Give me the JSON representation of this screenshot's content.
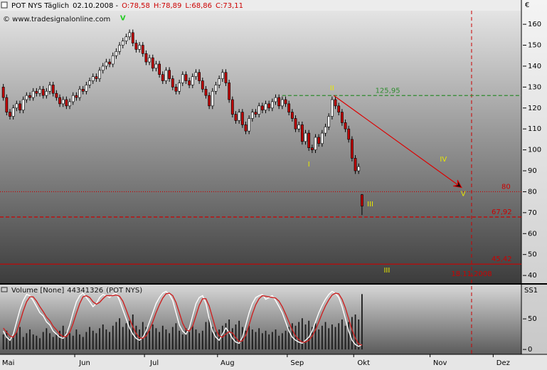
{
  "chart_data": [
    {
      "type": "candlestick",
      "header": [
        "POT NYS Täglich",
        "02.10.2008 -",
        "O:78,58",
        "H:78,89",
        "L:68,86",
        "C:73,11"
      ],
      "header_colors": [
        "#000000",
        "#000000",
        "#cc0000",
        "#cc0000",
        "#cc0000",
        "#cc0000"
      ],
      "subtitle": "© www.tradesignalonline.com",
      "unit": "€",
      "xlim": [
        -1,
        156
      ],
      "xticks": [
        {
          "value": 1.5,
          "label": "Mai"
        },
        {
          "value": 24.5,
          "label": "Jun"
        },
        {
          "value": 45.5,
          "label": "Jul"
        },
        {
          "value": 67.5,
          "label": "Aug"
        },
        {
          "value": 88.5,
          "label": "Sep"
        },
        {
          "value": 108.5,
          "label": "Okt"
        },
        {
          "value": 131.5,
          "label": "Nov"
        },
        {
          "value": 150.5,
          "label": "Dez"
        }
      ],
      "ylim": [
        36.3,
        166.5
      ],
      "yticks": [
        40,
        50,
        60,
        70,
        80,
        90,
        100,
        110,
        120,
        130,
        140,
        150,
        160
      ],
      "up_color": "#ffffff",
      "down_color": "#c00000",
      "open": [
        130,
        125,
        118,
        116,
        120,
        122,
        119,
        124,
        126,
        125,
        128,
        127,
        129,
        126,
        128,
        131,
        127,
        125,
        122,
        124,
        121,
        123,
        126,
        125,
        129,
        128,
        131,
        133,
        135,
        134,
        138,
        140,
        142,
        141,
        145,
        147,
        150,
        152,
        154,
        156,
        151,
        148,
        150,
        146,
        142,
        144,
        139,
        141,
        136,
        133,
        138,
        134,
        130,
        128,
        132,
        136,
        133,
        131,
        135,
        137,
        133,
        129,
        126,
        121,
        128,
        131,
        134,
        137,
        132,
        124,
        117,
        114,
        118,
        112,
        109,
        115,
        118,
        117,
        121,
        119,
        122,
        120,
        123,
        125,
        121,
        124,
        122,
        118,
        115,
        110,
        112,
        104,
        108,
        101,
        100,
        106,
        103,
        108,
        111,
        116,
        124,
        121,
        118,
        113,
        110,
        105,
        96,
        90,
        78.58
      ],
      "high": [
        131.5,
        126.5,
        119.5,
        121.5,
        123.5,
        123.5,
        125.5,
        127.5,
        127.5,
        129.5,
        129.5,
        130.5,
        130.5,
        129.5,
        132.5,
        132.5,
        128.5,
        126.5,
        125.5,
        125.5,
        124.5,
        127.5,
        127.5,
        130.5,
        130.5,
        132.5,
        134.5,
        136.5,
        136.5,
        139.5,
        141.5,
        143.5,
        143.5,
        146.5,
        148.5,
        151.5,
        153.5,
        155.5,
        157.5,
        157.5,
        152.5,
        151.5,
        151.5,
        147.5,
        145.5,
        145.5,
        142.5,
        142.5,
        137.5,
        139.5,
        139.5,
        135.5,
        131.5,
        133.5,
        137.5,
        137.5,
        134.5,
        136.5,
        138.5,
        138.5,
        134.5,
        130.5,
        127.5,
        129.5,
        132.5,
        135.5,
        138.5,
        138.5,
        133.5,
        125.5,
        118.5,
        119.5,
        119.5,
        113.5,
        116.5,
        119.5,
        119.5,
        122.5,
        122.5,
        123.5,
        123.5,
        124.5,
        126.5,
        126.5,
        125.5,
        125.5,
        123.5,
        119.5,
        116.5,
        113.5,
        113.5,
        109.5,
        109.5,
        102.5,
        107.5,
        107.5,
        109.5,
        112.5,
        117.5,
        125.5,
        125.5,
        122.5,
        119.5,
        114.5,
        111.5,
        106.5,
        97.5,
        93.5,
        78.89
      ],
      "low": [
        123.5,
        116.5,
        114.5,
        114.5,
        118.5,
        117.5,
        117.5,
        122.5,
        123.5,
        123.5,
        125.5,
        125.5,
        124.5,
        124.5,
        126.5,
        125.5,
        123.5,
        120.5,
        120.5,
        119.5,
        119.5,
        121.5,
        123.5,
        123.5,
        126.5,
        126.5,
        129.5,
        131.5,
        132.5,
        132.5,
        136.5,
        138.5,
        139.5,
        139.5,
        143.5,
        145.5,
        148.5,
        150.5,
        152.5,
        149.5,
        146.5,
        146.5,
        144.5,
        140.5,
        140.5,
        137.5,
        137.5,
        134.5,
        131.5,
        131.5,
        132.5,
        128.5,
        126.5,
        126.5,
        130.5,
        131.5,
        129.5,
        129.5,
        133.5,
        131.5,
        127.5,
        124.5,
        119.5,
        119.5,
        126.5,
        129.5,
        132.5,
        130.5,
        122.5,
        115.5,
        112.5,
        112.5,
        110.5,
        107.5,
        107.5,
        113.5,
        115.5,
        115.5,
        117.5,
        117.5,
        118.5,
        118.5,
        121.5,
        119.5,
        119.5,
        120.5,
        116.5,
        113.5,
        108.5,
        108.5,
        102.5,
        102.5,
        99.5,
        98.5,
        98.5,
        101.5,
        101.5,
        106.5,
        109.5,
        114.5,
        119.5,
        116.5,
        111.5,
        108.5,
        103.5,
        94.5,
        88.5,
        88.5,
        68.86
      ],
      "close": [
        125,
        118,
        116,
        120,
        122,
        119,
        124,
        126,
        125,
        128,
        127,
        129,
        126,
        128,
        131,
        127,
        125,
        122,
        124,
        121,
        123,
        126,
        125,
        129,
        128,
        131,
        133,
        135,
        134,
        138,
        140,
        142,
        141,
        145,
        147,
        150,
        152,
        154,
        156,
        151,
        148,
        150,
        146,
        142,
        144,
        139,
        141,
        136,
        133,
        138,
        134,
        130,
        128,
        132,
        136,
        133,
        131,
        135,
        137,
        133,
        129,
        126,
        121,
        128,
        131,
        134,
        137,
        132,
        124,
        117,
        114,
        118,
        112,
        109,
        115,
        118,
        117,
        121,
        119,
        122,
        120,
        123,
        125,
        121,
        124,
        122,
        118,
        115,
        110,
        112,
        104,
        108,
        101,
        100,
        106,
        103,
        108,
        111,
        116,
        124,
        121,
        118,
        113,
        110,
        105,
        96,
        90,
        92,
        73.11
      ],
      "levels": [
        {
          "value": 125.95,
          "label": "125,95",
          "color": "#2e8b2e",
          "style": "dashed",
          "from": 84,
          "label_x": 112
        },
        {
          "value": 80,
          "label": "80",
          "color": "#cc0000",
          "style": "dotted",
          "from": -1,
          "label_x": 150
        },
        {
          "value": 67.92,
          "label": "67,92",
          "color": "#cc0000",
          "style": "dashed",
          "from": -1,
          "label_x": 147
        },
        {
          "value": 45.42,
          "label": "45,42",
          "color": "#cc0000",
          "style": "solid",
          "from": -1,
          "label_x": 147
        }
      ],
      "vline": {
        "value": 141,
        "label": "18.11.2008",
        "color": "#cc0000"
      },
      "arrow": {
        "from": [
          99.5,
          125.95
        ],
        "to": [
          138,
          82
        ],
        "color": "#dd0000"
      },
      "waves": [
        {
          "label": "V",
          "x": 36,
          "y": 163,
          "color": "#22cc22"
        },
        {
          "label": "II",
          "x": 99,
          "y": 129.5,
          "color": "#e8e800"
        },
        {
          "label": "I",
          "x": 92,
          "y": 93,
          "color": "#e8e800"
        },
        {
          "label": "III",
          "x": 110.5,
          "y": 74,
          "color": "#e8e800"
        },
        {
          "label": "IV",
          "x": 132.5,
          "y": 95.5,
          "color": "#e8e800"
        },
        {
          "label": "V",
          "x": 138.5,
          "y": 79,
          "color": "#e8e800"
        },
        {
          "label": "III",
          "x": 115.5,
          "y": 42.5,
          "color": "#e8e800"
        }
      ]
    },
    {
      "type": "line",
      "title": "Volume [None]",
      "source": "(POT NYS)",
      "axis_label": "SS1",
      "ylim": [
        -8,
        106
      ],
      "yticks": [
        0,
        50
      ],
      "volume": {
        "color": "#1a1a1a",
        "ylim": [
          0,
          49000000
        ],
        "values": [
          12000000,
          15000000,
          9000000,
          11000000,
          14000000,
          18000000,
          10000000,
          13000000,
          16000000,
          12000000,
          11000000,
          9000000,
          14000000,
          17000000,
          13000000,
          10000000,
          12000000,
          15000000,
          19000000,
          14000000,
          13000000,
          11000000,
          16000000,
          12000000,
          10000000,
          14000000,
          18000000,
          15000000,
          13000000,
          17000000,
          20000000,
          16000000,
          14000000,
          19000000,
          22000000,
          25000000,
          18000000,
          21000000,
          23000000,
          28000000,
          19000000,
          16000000,
          22000000,
          18000000,
          15000000,
          20000000,
          17000000,
          14000000,
          19000000,
          16000000,
          13000000,
          18000000,
          21000000,
          15000000,
          12000000,
          17000000,
          14000000,
          19000000,
          16000000,
          13000000,
          15000000,
          22000000,
          25000000,
          18000000,
          14000000,
          16000000,
          19000000,
          21000000,
          24000000,
          17000000,
          20000000,
          23000000,
          18000000,
          15000000,
          19000000,
          16000000,
          14000000,
          17000000,
          13000000,
          15000000,
          12000000,
          14000000,
          16000000,
          11000000,
          13000000,
          15000000,
          18000000,
          21000000,
          19000000,
          22000000,
          25000000,
          20000000,
          23000000,
          18000000,
          21000000,
          16000000,
          19000000,
          22000000,
          17000000,
          20000000,
          18000000,
          21000000,
          24000000,
          19000000,
          22000000,
          26000000,
          28000000,
          24000000,
          44341326
        ]
      },
      "series": [
        {
          "color": "#ffffff",
          "values": [
            30,
            20,
            15,
            25,
            45,
            65,
            80,
            90,
            88,
            80,
            70,
            60,
            55,
            45,
            40,
            30,
            25,
            20,
            18,
            25,
            40,
            60,
            78,
            88,
            92,
            85,
            78,
            70,
            75,
            85,
            90,
            88,
            85,
            90,
            92,
            80,
            65,
            50,
            35,
            25,
            18,
            15,
            20,
            30,
            45,
            60,
            75,
            85,
            92,
            95,
            90,
            80,
            60,
            40,
            30,
            25,
            35,
            55,
            75,
            85,
            88,
            75,
            50,
            30,
            20,
            15,
            25,
            35,
            28,
            18,
            12,
            10,
            20,
            40,
            60,
            75,
            85,
            88,
            90,
            82,
            85,
            88,
            80,
            70,
            60,
            45,
            30,
            20,
            15,
            12,
            10,
            15,
            20,
            30,
            45,
            60,
            72,
            82,
            90,
            95,
            92,
            85,
            70,
            50,
            30,
            15,
            8,
            5,
            8
          ]
        },
        {
          "color": "#cc2222",
          "values": [
            35,
            28,
            22,
            20,
            28,
            45,
            63,
            78,
            86,
            86,
            79,
            70,
            62,
            53,
            47,
            38,
            32,
            25,
            21,
            21,
            28,
            42,
            59,
            75,
            86,
            88,
            85,
            78,
            74,
            77,
            83,
            88,
            88,
            88,
            89,
            87,
            79,
            65,
            50,
            37,
            26,
            19,
            18,
            22,
            32,
            45,
            60,
            73,
            84,
            91,
            92,
            88,
            77,
            60,
            43,
            32,
            30,
            38,
            55,
            72,
            83,
            83,
            71,
            52,
            33,
            22,
            20,
            25,
            29,
            27,
            19,
            13,
            14,
            23,
            40,
            58,
            73,
            83,
            88,
            87,
            86,
            85,
            84,
            79,
            70,
            58,
            45,
            32,
            22,
            16,
            12,
            12,
            15,
            22,
            32,
            45,
            59,
            71,
            81,
            89,
            92,
            91,
            82,
            68,
            50,
            32,
            18,
            9,
            7
          ]
        }
      ]
    }
  ]
}
